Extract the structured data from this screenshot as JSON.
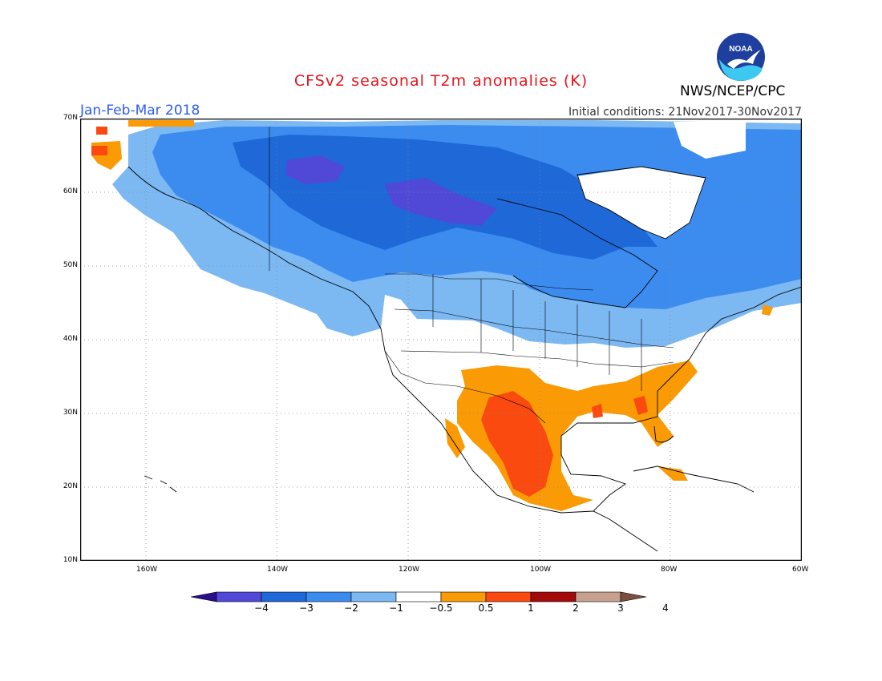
{
  "title": "CFSv2 seasonal T2m anomalies (K)",
  "period": "Jan-Feb-Mar 2018",
  "initial_conditions": "Initial conditions: 21Nov2017-30Nov2017",
  "agency": "NWS/NCEP/CPC",
  "logo_text": "NOAA",
  "map": {
    "lon_range": [
      -170,
      -60
    ],
    "lat_range": [
      10,
      70
    ],
    "lat_labels": [
      "70N",
      "60N",
      "50N",
      "40N",
      "30N",
      "20N",
      "10N"
    ],
    "lon_labels": [
      "160W",
      "140W",
      "120W",
      "100W",
      "80W",
      "60W"
    ]
  },
  "colorbar": {
    "labels": [
      "-4",
      "-3",
      "-2",
      "-1",
      "-0.5",
      "0.5",
      "1",
      "2",
      "3",
      "4"
    ],
    "colors": [
      "#2a0e8c",
      "#5048d6",
      "#1f68d8",
      "#3c8cf0",
      "#7cb8f2",
      "#ffffff",
      "#fa9a05",
      "#fa4a10",
      "#a40a0a",
      "#c8a090",
      "#7a5040"
    ]
  }
}
